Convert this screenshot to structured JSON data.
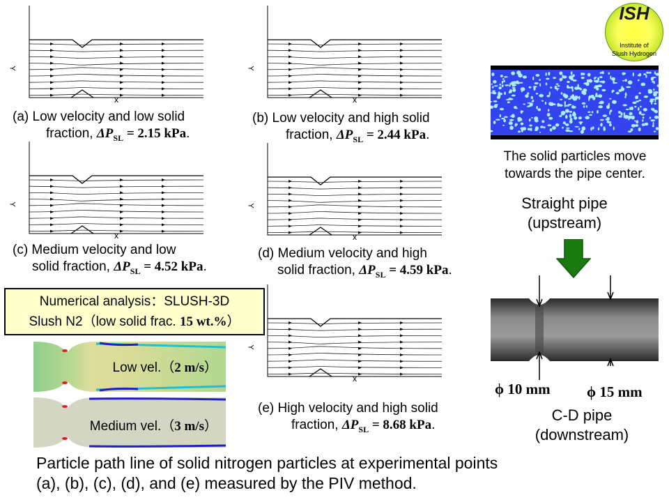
{
  "logo": {
    "title": "ISH",
    "subtitle_line1": "Institute of",
    "subtitle_line2": "Slush Hydrogen"
  },
  "plots": [
    {
      "id": "a",
      "axis_x": "x",
      "axis_y": "Y",
      "caption_line1": "(a) Low velocity and low solid",
      "caption_line2_prefix": "fraction, ",
      "dp_symbol": "ΔP",
      "dp_sub": "SL",
      "dp_value": " = 2.15 kPa",
      "caption_end": "."
    },
    {
      "id": "b",
      "axis_x": "x",
      "axis_y": "Y",
      "caption_line1": "(b) Low velocity and high solid",
      "caption_line2_prefix": "fraction, ",
      "dp_symbol": "ΔP",
      "dp_sub": "SL",
      "dp_value": " = 2.44 kPa",
      "caption_end": "."
    },
    {
      "id": "c",
      "axis_x": "x",
      "axis_y": "Y",
      "caption_line1": "(c) Medium velocity and low",
      "caption_line2_prefix": "solid fraction, ",
      "dp_symbol": "ΔP",
      "dp_sub": "SL",
      "dp_value": " = 4.52 kPa",
      "caption_end": "."
    },
    {
      "id": "d",
      "axis_x": "x",
      "axis_y": "Y",
      "caption_line1": "(d) Medium velocity and high",
      "caption_line2_prefix": "solid fraction, ",
      "dp_symbol": "ΔP",
      "dp_sub": "SL",
      "dp_value": " = 4.59 kPa",
      "caption_end": "."
    },
    {
      "id": "e",
      "axis_x": "x",
      "axis_y": "Y",
      "caption_line1": "(e) High velocity and high solid",
      "caption_line2_prefix": "fraction, ",
      "dp_symbol": "ΔP",
      "dp_sub": "SL",
      "dp_value": " = 8.68 kPa",
      "caption_end": "."
    }
  ],
  "numerical": {
    "line1": "Numerical analysis：SLUSH-3D",
    "line2_prefix": "Slush N2（low solid frac. ",
    "line2_bold": "15 wt.%",
    "line2_end": "）",
    "sim_low": {
      "prefix": "Low vel.（",
      "bold": "2 m/s",
      "end": "）"
    },
    "sim_medium": {
      "prefix": "Medium vel.（",
      "bold": "3 m/s",
      "end": "）"
    }
  },
  "right": {
    "particles_caption": "The solid particles move towards the pipe center.",
    "straight_line1": "Straight pipe",
    "straight_line2": "(upstream)",
    "phi10": "ϕ 10 mm",
    "phi15": "ϕ 15 mm",
    "cd_line1": "C-D pipe",
    "cd_line2": "(downstream)"
  },
  "footer": {
    "line1": "Particle path line of solid nitrogen particles at experimental points",
    "line2": "(a), (b), (c), (d), and (e) measured by the PIV method."
  },
  "colors": {
    "arrow": "#1a7a10",
    "particle_bg": "#3344ee",
    "particle": "#aaeeff",
    "box_bg": "#ffffcc"
  }
}
